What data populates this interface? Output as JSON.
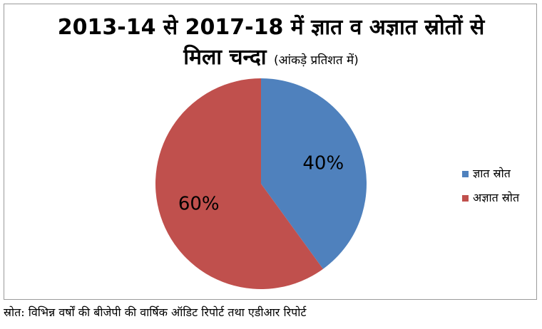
{
  "chart_data": {
    "type": "pie",
    "title": "2013-14 से 2017-18 में ज्ञात व अज्ञात स्रोतों से",
    "title_line2": "मिला चन्दा",
    "subtitle": "(आंकड़े प्रतिशत में)",
    "categories": [
      "ज्ञात स्रोत",
      "अज्ञात स्रोत"
    ],
    "values": [
      40,
      60
    ],
    "data_labels": [
      "40%",
      "60%"
    ],
    "colors": [
      "#4f81bd",
      "#c0504d"
    ],
    "legend_position": "right",
    "start_angle_deg": 0,
    "direction": "clockwise"
  },
  "source": "स्रोत: विभिन्न वर्षों की बीजेपी की वार्षिक ऑडिट रिपोर्ट तथा एडीआर रिपोर्ट"
}
